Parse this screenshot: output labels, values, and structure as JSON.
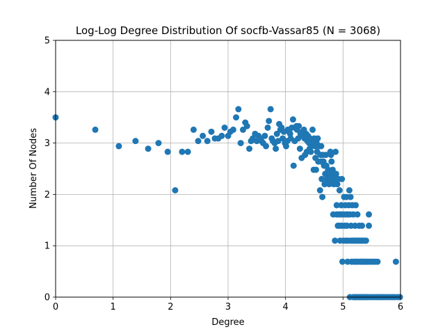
{
  "chart_data": {
    "type": "scatter",
    "title": "Log-Log Degree Distribution Of socfb-Vassar85 (N = 3068)",
    "xlabel": "Degree",
    "ylabel": "Number Of Nodes",
    "xlim": [
      0,
      6
    ],
    "ylim": [
      0,
      5
    ],
    "xticks": [
      "0",
      "1",
      "2",
      "3",
      "4",
      "5",
      "6"
    ],
    "yticks": [
      "0",
      "1",
      "2",
      "3",
      "4",
      "5"
    ],
    "grid": true,
    "marker_color": "#1f77b4",
    "points": [
      [
        0.0,
        3.5
      ],
      [
        0.69,
        3.26
      ],
      [
        1.1,
        2.94
      ],
      [
        1.39,
        3.04
      ],
      [
        1.61,
        2.89
      ],
      [
        1.79,
        3.0
      ],
      [
        1.95,
        2.83
      ],
      [
        2.08,
        2.08
      ],
      [
        2.2,
        2.83
      ],
      [
        2.3,
        2.83
      ],
      [
        2.4,
        3.26
      ],
      [
        2.48,
        3.04
      ],
      [
        2.56,
        3.14
      ],
      [
        2.64,
        3.04
      ],
      [
        2.71,
        3.22
      ],
      [
        2.77,
        3.09
      ],
      [
        2.83,
        3.09
      ],
      [
        2.89,
        3.14
      ],
      [
        2.94,
        3.3
      ],
      [
        3.0,
        3.14
      ],
      [
        3.04,
        3.22
      ],
      [
        3.09,
        3.26
      ],
      [
        3.14,
        3.5
      ],
      [
        3.18,
        3.66
      ],
      [
        3.22,
        3.0
      ],
      [
        3.26,
        3.26
      ],
      [
        3.3,
        3.4
      ],
      [
        3.33,
        3.33
      ],
      [
        3.37,
        2.89
      ],
      [
        3.4,
        3.04
      ],
      [
        3.43,
        3.09
      ],
      [
        3.47,
        3.18
      ],
      [
        3.5,
        3.04
      ],
      [
        3.53,
        3.14
      ],
      [
        3.56,
        3.09
      ],
      [
        3.58,
        3.04
      ],
      [
        3.61,
        3.0
      ],
      [
        3.64,
        3.14
      ],
      [
        3.66,
        2.94
      ],
      [
        3.69,
        3.3
      ],
      [
        3.71,
        3.43
      ],
      [
        3.74,
        3.66
      ],
      [
        3.76,
        3.09
      ],
      [
        3.78,
        3.04
      ],
      [
        3.81,
        3.0
      ],
      [
        3.83,
        2.89
      ],
      [
        3.85,
        3.18
      ],
      [
        3.87,
        3.04
      ],
      [
        3.89,
        3.37
      ],
      [
        3.91,
        3.26
      ],
      [
        3.93,
        3.3
      ],
      [
        3.95,
        3.09
      ],
      [
        3.97,
        3.22
      ],
      [
        3.99,
        3.0
      ],
      [
        4.01,
        2.94
      ],
      [
        4.03,
        3.04
      ],
      [
        4.04,
        3.26
      ],
      [
        4.06,
        3.22
      ],
      [
        4.08,
        3.18
      ],
      [
        4.09,
        3.09
      ],
      [
        4.11,
        3.3
      ],
      [
        4.13,
        3.46
      ],
      [
        4.14,
        2.56
      ],
      [
        4.16,
        3.04
      ],
      [
        4.17,
        3.3
      ],
      [
        4.19,
        3.33
      ],
      [
        4.2,
        3.26
      ],
      [
        4.22,
        3.09
      ],
      [
        4.23,
        3.33
      ],
      [
        4.25,
        2.89
      ],
      [
        4.26,
        3.18
      ],
      [
        4.28,
        2.71
      ],
      [
        4.29,
        3.22
      ],
      [
        4.3,
        3.14
      ],
      [
        4.32,
        3.26
      ],
      [
        4.33,
        3.09
      ],
      [
        4.34,
        2.77
      ],
      [
        4.36,
        3.18
      ],
      [
        4.37,
        2.83
      ],
      [
        4.38,
        3.04
      ],
      [
        4.39,
        3.14
      ],
      [
        4.41,
        3.0
      ],
      [
        4.42,
        2.89
      ],
      [
        4.43,
        3.09
      ],
      [
        4.44,
        2.83
      ],
      [
        4.45,
        2.94
      ],
      [
        4.47,
        3.26
      ],
      [
        4.48,
        3.04
      ],
      [
        4.49,
        2.48
      ],
      [
        4.5,
        3.09
      ],
      [
        4.51,
        2.94
      ],
      [
        4.52,
        2.71
      ],
      [
        4.53,
        2.48
      ],
      [
        4.54,
        3.0
      ],
      [
        4.55,
        2.83
      ],
      [
        4.56,
        3.09
      ],
      [
        4.57,
        2.64
      ],
      [
        4.58,
        2.94
      ],
      [
        4.6,
        2.08
      ],
      [
        4.61,
        2.77
      ],
      [
        4.62,
        2.64
      ],
      [
        4.62,
        2.94
      ],
      [
        4.63,
        2.3
      ],
      [
        4.64,
        1.95
      ],
      [
        4.65,
        2.77
      ],
      [
        4.66,
        2.64
      ],
      [
        4.67,
        2.56
      ],
      [
        4.68,
        2.2
      ],
      [
        4.69,
        2.4
      ],
      [
        4.7,
        2.77
      ],
      [
        4.71,
        2.56
      ],
      [
        4.72,
        2.3
      ],
      [
        4.73,
        2.4
      ],
      [
        4.74,
        2.48
      ],
      [
        4.75,
        2.3
      ],
      [
        4.76,
        2.2
      ],
      [
        4.77,
        2.4
      ],
      [
        4.78,
        2.83
      ],
      [
        4.79,
        2.77
      ],
      [
        4.8,
        2.64
      ],
      [
        4.81,
        2.3
      ],
      [
        4.82,
        2.48
      ],
      [
        4.83,
        1.61
      ],
      [
        4.84,
        2.2
      ],
      [
        4.84,
        2.3
      ],
      [
        4.85,
        2.4
      ],
      [
        4.86,
        1.1
      ],
      [
        4.87,
        2.83
      ],
      [
        4.88,
        2.4
      ],
      [
        4.89,
        1.61
      ],
      [
        4.89,
        1.79
      ],
      [
        4.9,
        2.2
      ],
      [
        4.91,
        1.39
      ],
      [
        4.92,
        2.3
      ],
      [
        4.93,
        1.61
      ],
      [
        4.94,
        1.39
      ],
      [
        4.94,
        2.08
      ],
      [
        4.95,
        1.1
      ],
      [
        4.96,
        1.61
      ],
      [
        4.97,
        1.79
      ],
      [
        4.98,
        1.39
      ],
      [
        4.98,
        2.3
      ],
      [
        4.99,
        0.69
      ],
      [
        5.0,
        1.61
      ],
      [
        5.01,
        1.1
      ],
      [
        5.02,
        1.95
      ],
      [
        5.03,
        1.39
      ],
      [
        5.04,
        1.61
      ],
      [
        5.04,
        1.79
      ],
      [
        5.05,
        1.1
      ],
      [
        5.06,
        1.95
      ],
      [
        5.07,
        1.39
      ],
      [
        5.08,
        1.61
      ],
      [
        5.08,
        0.69
      ],
      [
        5.09,
        1.1
      ],
      [
        5.1,
        1.79
      ],
      [
        5.11,
        2.08
      ],
      [
        5.12,
        1.61
      ],
      [
        5.12,
        0.0
      ],
      [
        5.13,
        1.95
      ],
      [
        5.14,
        1.1
      ],
      [
        5.14,
        1.39
      ],
      [
        5.15,
        0.69
      ],
      [
        5.16,
        1.79
      ],
      [
        5.17,
        1.1
      ],
      [
        5.18,
        1.61
      ],
      [
        5.18,
        0.0
      ],
      [
        5.19,
        0.69
      ],
      [
        5.2,
        1.1
      ],
      [
        5.21,
        1.39
      ],
      [
        5.21,
        0.0
      ],
      [
        5.22,
        1.79
      ],
      [
        5.23,
        1.1
      ],
      [
        5.23,
        0.69
      ],
      [
        5.24,
        0.0
      ],
      [
        5.25,
        1.61
      ],
      [
        5.26,
        1.1
      ],
      [
        5.26,
        0.69
      ],
      [
        5.27,
        0.0
      ],
      [
        5.28,
        1.39
      ],
      [
        5.29,
        1.1
      ],
      [
        5.3,
        0.69
      ],
      [
        5.3,
        0.0
      ],
      [
        5.31,
        1.1
      ],
      [
        5.32,
        0.69
      ],
      [
        5.33,
        0.0
      ],
      [
        5.33,
        1.39
      ],
      [
        5.34,
        1.1
      ],
      [
        5.35,
        0.69
      ],
      [
        5.36,
        0.0
      ],
      [
        5.37,
        1.1
      ],
      [
        5.38,
        0.69
      ],
      [
        5.39,
        0.0
      ],
      [
        5.4,
        1.1
      ],
      [
        5.41,
        0.69
      ],
      [
        5.42,
        0.0
      ],
      [
        5.44,
        0.69
      ],
      [
        5.45,
        1.39
      ],
      [
        5.45,
        1.61
      ],
      [
        5.46,
        0.0
      ],
      [
        5.48,
        0.69
      ],
      [
        5.5,
        0.0
      ],
      [
        5.52,
        0.69
      ],
      [
        5.54,
        0.0
      ],
      [
        5.56,
        0.69
      ],
      [
        5.58,
        0.0
      ],
      [
        5.6,
        0.69
      ],
      [
        5.62,
        0.0
      ],
      [
        5.66,
        0.0
      ],
      [
        5.7,
        0.0
      ],
      [
        5.74,
        0.0
      ],
      [
        5.78,
        0.0
      ],
      [
        5.82,
        0.0
      ],
      [
        5.86,
        0.0
      ],
      [
        5.9,
        0.0
      ],
      [
        5.92,
        0.69
      ],
      [
        5.95,
        0.0
      ],
      [
        5.99,
        0.0
      ]
    ]
  }
}
